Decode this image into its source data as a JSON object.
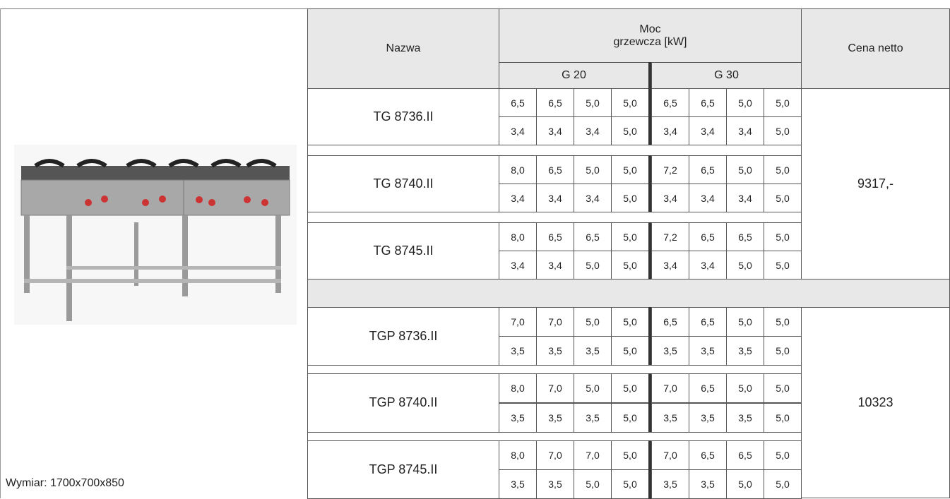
{
  "image_caption": "Wymiar: 1700x700x850",
  "table": {
    "header": {
      "name": "Nazwa",
      "power": [
        "Moc",
        "grzewcza [kW]"
      ],
      "g20": "G 20",
      "g30": "G 30",
      "price": "Cena netto"
    },
    "sections": [
      {
        "price": "9317,-",
        "models": [
          {
            "name": "TG 8736.II",
            "g20": [
              [
                "6,5",
                "6,5",
                "5,0",
                "5,0"
              ],
              [
                "3,4",
                "3,4",
                "3,4",
                "5,0"
              ]
            ],
            "g30": [
              [
                "6,5",
                "6,5",
                "5,0",
                "5,0"
              ],
              [
                "3,4",
                "3,4",
                "3,4",
                "5,0"
              ]
            ]
          },
          {
            "name": "TG 8740.II",
            "g20": [
              [
                "8,0",
                "6,5",
                "5,0",
                "5,0"
              ],
              [
                "3,4",
                "3,4",
                "3,4",
                "5,0"
              ]
            ],
            "g30": [
              [
                "7,2",
                "6,5",
                "5,0",
                "5,0"
              ],
              [
                "3,4",
                "3,4",
                "3,4",
                "5,0"
              ]
            ]
          },
          {
            "name": "TG 8745.II",
            "g20": [
              [
                "8,0",
                "6,5",
                "6,5",
                "5,0"
              ],
              [
                "3,4",
                "3,4",
                "5,0",
                "5,0"
              ]
            ],
            "g30": [
              [
                "7,2",
                "6,5",
                "6,5",
                "5,0"
              ],
              [
                "3,4",
                "3,4",
                "5,0",
                "5,0"
              ]
            ]
          }
        ]
      },
      {
        "price": "10323",
        "models": [
          {
            "name": "TGP 8736.II",
            "g20": [
              [
                "7,0",
                "7,0",
                "5,0",
                "5,0"
              ],
              [
                "3,5",
                "3,5",
                "3,5",
                "5,0"
              ]
            ],
            "g30": [
              [
                "6,5",
                "6,5",
                "5,0",
                "5,0"
              ],
              [
                "3,5",
                "3,5",
                "3,5",
                "5,0"
              ]
            ]
          },
          {
            "name": "TGP 8740.II",
            "g20": [
              [
                "8,0",
                "7,0",
                "5,0",
                "5,0"
              ],
              [
                "3,5",
                "3,5",
                "3,5",
                "5,0"
              ]
            ],
            "g30": [
              [
                "7,0",
                "6,5",
                "5,0",
                "5,0"
              ],
              [
                "3,5",
                "3,5",
                "3,5",
                "5,0"
              ]
            ]
          },
          {
            "name": "TGP 8745.II",
            "g20": [
              [
                "8,0",
                "7,0",
                "7,0",
                "5,0"
              ],
              [
                "3,5",
                "3,5",
                "5,0",
                "5,0"
              ]
            ],
            "g30": [
              [
                "7,0",
                "6,5",
                "6,5",
                "5,0"
              ],
              [
                "3,5",
                "3,5",
                "5,0",
                "5,0"
              ]
            ]
          }
        ]
      }
    ]
  }
}
